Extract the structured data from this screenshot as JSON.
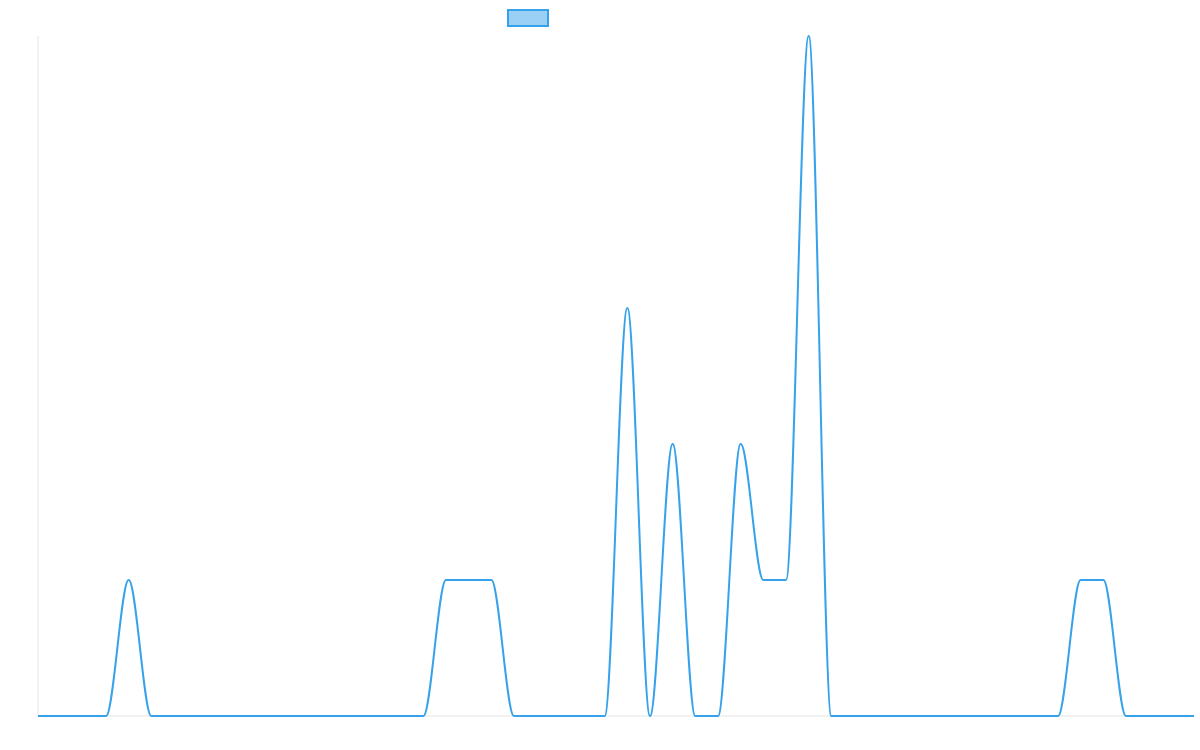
{
  "chart_data": {
    "type": "line",
    "title": "",
    "xlabel": "",
    "ylabel": "",
    "grid": false,
    "legend": {
      "position": "top-center",
      "entries": [
        {
          "name": ""
        }
      ]
    },
    "colors": {
      "line": "#36a2eb",
      "legend_fill": "#9ad0f5",
      "axis": "#e5e5e5"
    },
    "xlim": [
      0,
      51
    ],
    "ylim": [
      0,
      30
    ],
    "series": [
      {
        "name": "",
        "x": [
          0,
          3,
          4,
          5,
          6,
          17,
          18,
          19,
          20,
          21,
          22,
          25,
          26,
          27,
          28,
          29,
          30,
          31,
          32,
          33,
          34,
          35,
          36,
          37,
          40,
          45,
          46,
          47,
          48,
          51
        ],
        "y": [
          0,
          0,
          6,
          0,
          0,
          0,
          6,
          6,
          6,
          0,
          0,
          0,
          18,
          0,
          12,
          0,
          0,
          12,
          6,
          6,
          30,
          0,
          0,
          0,
          0,
          0,
          6,
          6,
          0,
          0
        ]
      }
    ]
  }
}
